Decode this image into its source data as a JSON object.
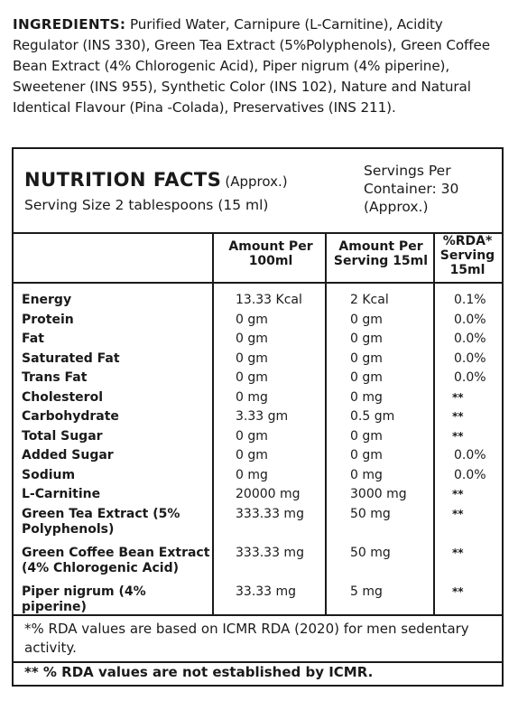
{
  "ingredients": {
    "label": "INGREDIENTS:",
    "text": "Purified Water, Carnipure (L-Carnitine), Acidity Regulator (INS 330), Green Tea Extract (5%Polyphenols), Green Coffee Bean Extract (4% Chlorogenic Acid), Piper nigrum (4% piperine), Sweetener (INS 955), Synthetic Color (INS 102), Nature and Natural Identical Flavour (Pina -Colada), Preservatives (INS 211)."
  },
  "nutrition": {
    "title": "NUTRITION FACTS",
    "title_suffix": "(Approx.)",
    "serving_size": "Serving Size 2 tablespoons (15 ml)",
    "servings_per_container": "Servings Per Container: 30 (Approx.)",
    "columns": {
      "per_100ml": "Amount Per 100ml",
      "per_serving": "Amount Per Serving 15ml",
      "rda": "%RDA* Serving 15ml"
    },
    "rows": [
      {
        "name": "Energy",
        "per_100ml": "13.33 Kcal",
        "per_serving": "2 Kcal",
        "rda": "0.1%"
      },
      {
        "name": "Protein",
        "per_100ml": "0 gm",
        "per_serving": "0 gm",
        "rda": "0.0%"
      },
      {
        "name": "Fat",
        "per_100ml": "0 gm",
        "per_serving": "0 gm",
        "rda": "0.0%"
      },
      {
        "name": "Saturated Fat",
        "per_100ml": "0 gm",
        "per_serving": "0 gm",
        "rda": "0.0%"
      },
      {
        "name": "Trans Fat",
        "per_100ml": "0 gm",
        "per_serving": "0 gm",
        "rda": "0.0%"
      },
      {
        "name": "Cholesterol",
        "per_100ml": "0 mg",
        "per_serving": "0 mg",
        "rda": "**"
      },
      {
        "name": "Carbohydrate",
        "per_100ml": "3.33 gm",
        "per_serving": "0.5 gm",
        "rda": "**"
      },
      {
        "name": "Total Sugar",
        "per_100ml": "0 gm",
        "per_serving": "0 gm",
        "rda": "**"
      },
      {
        "name": "Added Sugar",
        "per_100ml": "0 gm",
        "per_serving": "0 gm",
        "rda": "0.0%"
      },
      {
        "name": "Sodium",
        "per_100ml": "0 mg",
        "per_serving": "0 mg",
        "rda": "0.0%"
      },
      {
        "name": "L-Carnitine",
        "per_100ml": "20000 mg",
        "per_serving": "3000 mg",
        "rda": "**"
      },
      {
        "name": "Green Tea Extract (5% Polyphenols)",
        "per_100ml": "333.33 mg",
        "per_serving": "50 mg",
        "rda": "**"
      },
      {
        "name": "Green Coffee Bean Extract (4% Chlorogenic Acid)",
        "per_100ml": "333.33 mg",
        "per_serving": "50 mg",
        "rda": "**"
      },
      {
        "name": "Piper nigrum (4% piperine)",
        "per_100ml": "33.33 mg",
        "per_serving": "5 mg",
        "rda": "**"
      }
    ],
    "footnote_rda": "*% RDA values are based on ICMR RDA (2020) for men sedentary activity.",
    "footnote_not_established": "** % RDA values are not established by ICMR."
  }
}
